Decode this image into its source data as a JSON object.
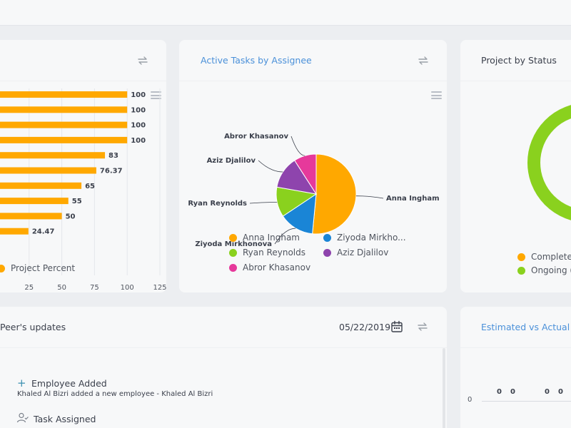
{
  "colors": {
    "bar": "#ffa800",
    "anna": "#ffa800",
    "ziyoda": "#1a85d6",
    "ryan": "#8ad11e",
    "aziz": "#8e44ad",
    "abror": "#e6399b",
    "ring": "#8ad11e",
    "title_blue": "#4a90d9"
  },
  "project_card": {
    "refresh_icon": "refresh-icon",
    "menu_icon": "hamburger-menu-icon",
    "legend_label": "Project Percent",
    "chart_data": {
      "type": "bar",
      "orientation": "horizontal",
      "values": [
        100,
        100,
        100,
        100,
        83,
        76.37,
        65,
        55,
        50,
        24.47
      ],
      "value_labels": [
        "100",
        "100",
        "100",
        "100",
        "83",
        "76.37",
        "65",
        "55",
        "50",
        "24.47"
      ],
      "xlim": [
        0,
        125
      ],
      "x_ticks": [
        "25",
        "50",
        "75",
        "100",
        "125"
      ],
      "grid": true,
      "series": [
        {
          "name": "Project Percent",
          "values": [
            100,
            100,
            100,
            100,
            83,
            76.37,
            65,
            55,
            50,
            24.47
          ]
        }
      ]
    }
  },
  "tasks_card": {
    "title": "Active Tasks by Assignee",
    "refresh_icon": "refresh-icon",
    "menu_icon": "hamburger-menu-icon",
    "chart_data": {
      "type": "pie",
      "slices": [
        {
          "label": "Anna Ingham",
          "value": 51
        },
        {
          "label": "Ziyoda Mirkhonova",
          "value": 14
        },
        {
          "label": "Ryan Reynolds",
          "value": 12
        },
        {
          "label": "Aziz Djalilov",
          "value": 13
        },
        {
          "label": "Abror Khasanov",
          "value": 9
        }
      ]
    },
    "legend": [
      {
        "label": "Anna Ingham",
        "color": "#ffa800"
      },
      {
        "label": "Ziyoda Mirkho...",
        "color": "#1a85d6"
      },
      {
        "label": "Ryan Reynolds",
        "color": "#8ad11e"
      },
      {
        "label": "Aziz Djalilov",
        "color": "#8e44ad"
      },
      {
        "label": "Abror Khasanov",
        "color": "#e6399b"
      }
    ]
  },
  "status_card": {
    "title": "Project by Status",
    "legend": [
      {
        "label": "Complete",
        "color": "#ffa800"
      },
      {
        "label": "Ongoing (",
        "color": "#8ad11e"
      }
    ]
  },
  "updates_card": {
    "title": "Peer's updates",
    "date": "05/22/2019",
    "calendar_icon": "calendar-icon",
    "refresh_icon": "refresh-icon",
    "items": [
      {
        "icon": "plus-icon",
        "title": "Employee Added",
        "subtitle": "Khaled Al Bizri added a new employee - Khaled Al Bizri"
      },
      {
        "icon": "user-check-icon",
        "title": "Task Assigned",
        "subtitle": ""
      }
    ]
  },
  "estimated_card": {
    "title": "Estimated vs Actual T",
    "y_zero": "0",
    "value_labels": [
      "0",
      "0",
      "0",
      "0"
    ]
  }
}
